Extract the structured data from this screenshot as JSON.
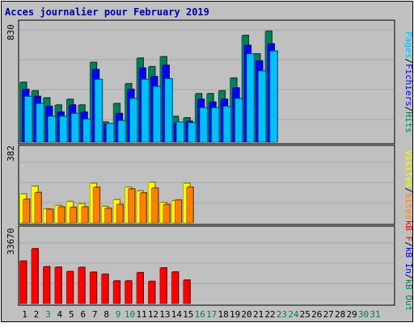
{
  "chart_data": [
    {
      "type": "bar",
      "title": "Acces journalier pour February 2019",
      "panel": "hits-files-pages",
      "ylabel_parts": [
        {
          "text": "Pages",
          "color": "#00c0ff"
        },
        {
          "text": "/",
          "color": "#000000"
        },
        {
          "text": "Fichiers",
          "color": "#0000ff"
        },
        {
          "text": "/",
          "color": "#000000"
        },
        {
          "text": "Hits",
          "color": "#00805c"
        }
      ],
      "ymax_label": "830",
      "ylim": [
        0,
        830
      ],
      "categories": [
        "1",
        "2",
        "3",
        "4",
        "5",
        "6",
        "7",
        "8",
        "9",
        "10",
        "11",
        "12",
        "13",
        "14",
        "15",
        "16",
        "17",
        "18",
        "19",
        "20",
        "21",
        "22",
        "23",
        "24",
        "25",
        "26",
        "27",
        "28",
        "29",
        "30",
        "31"
      ],
      "category_colors": [
        "#000000",
        "#000000",
        "#00805c",
        "#000000",
        "#000000",
        "#000000",
        "#000000",
        "#000000",
        "#00805c",
        "#00805c",
        "#000000",
        "#000000",
        "#000000",
        "#000000",
        "#000000",
        "#00805c",
        "#00805c",
        "#000000",
        "#000000",
        "#000000",
        "#000000",
        "#000000",
        "#00805c",
        "#00805c",
        "#000000",
        "#000000",
        "#000000",
        "#000000",
        "#000000",
        "#00805c",
        "#00805c"
      ],
      "series": [
        {
          "name": "Hits",
          "color": "#00805c",
          "values": [
            420,
            360,
            310,
            260,
            300,
            260,
            560,
            140,
            270,
            410,
            590,
            530,
            600,
            180,
            170,
            340,
            340,
            360,
            450,
            750,
            620,
            780,
            0,
            0,
            0,
            0,
            0,
            0,
            0,
            0,
            0
          ]
        },
        {
          "name": "Fichiers",
          "color": "#0000ff",
          "values": [
            370,
            320,
            250,
            210,
            260,
            210,
            510,
            125,
            200,
            370,
            520,
            460,
            540,
            130,
            145,
            300,
            280,
            300,
            380,
            680,
            570,
            690,
            0,
            0,
            0,
            0,
            0,
            0,
            0,
            0,
            0
          ]
        },
        {
          "name": "Pages",
          "color": "#00c0ff",
          "values": [
            320,
            270,
            180,
            180,
            200,
            160,
            440,
            130,
            150,
            305,
            440,
            390,
            445,
            140,
            135,
            240,
            240,
            250,
            305,
            620,
            500,
            640,
            0,
            0,
            0,
            0,
            0,
            0,
            0,
            0,
            0
          ]
        }
      ]
    },
    {
      "type": "bar",
      "panel": "visits-sites",
      "ylabel_parts": [
        {
          "text": "Visites",
          "color": "#ffff00"
        },
        {
          "text": "/",
          "color": "#000000"
        },
        {
          "text": "Sites",
          "color": "#ff8000"
        }
      ],
      "ymax_label": "382",
      "ylim": [
        0,
        382
      ],
      "series": [
        {
          "name": "Visites",
          "color": "#ffff00",
          "values": [
            150,
            190,
            72,
            90,
            110,
            98,
            205,
            85,
            120,
            185,
            165,
            210,
            105,
            115,
            205,
            0,
            0,
            0,
            0,
            0,
            0,
            0,
            0,
            0,
            0,
            0,
            0,
            0,
            0,
            0,
            0
          ]
        },
        {
          "name": "Sites",
          "color": "#ff8000",
          "values": [
            122,
            157,
            70,
            82,
            80,
            82,
            184,
            75,
            95,
            176,
            155,
            180,
            95,
            118,
            185,
            0,
            0,
            0,
            0,
            0,
            0,
            0,
            0,
            0,
            0,
            0,
            0,
            0,
            0,
            0,
            0
          ]
        }
      ]
    },
    {
      "type": "bar",
      "panel": "kbytes",
      "ylabel_parts": [
        {
          "text": "kB F",
          "color": "#ff0000"
        },
        {
          "text": "/",
          "color": "#000000"
        },
        {
          "text": "kB In",
          "color": "#0000ff"
        },
        {
          "text": "/",
          "color": "#000000"
        },
        {
          "text": "kB Out",
          "color": "#00805c"
        }
      ],
      "ymax_label": "33670",
      "ylim": [
        0,
        33670
      ],
      "series": [
        {
          "name": "kB F",
          "color": "#ff0000",
          "values": [
            19400,
            25100,
            16800,
            16600,
            14600,
            16500,
            14300,
            13400,
            10300,
            10300,
            14100,
            10100,
            16300,
            14400,
            10700,
            0,
            0,
            0,
            0,
            0,
            0,
            0,
            0,
            0,
            0,
            0,
            0,
            0,
            0,
            0,
            0
          ]
        }
      ]
    }
  ]
}
